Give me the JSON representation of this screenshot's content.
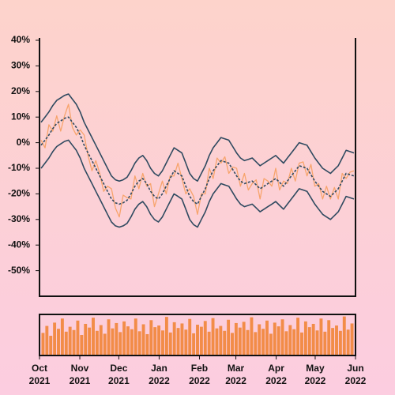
{
  "chart_data": [
    {
      "type": "line",
      "xlim": [
        "2021-10",
        "2022-06"
      ],
      "xticks": [
        {
          "value": "2021-10",
          "label": "Oct\n2021"
        },
        {
          "value": "2021-11",
          "label": "Nov\n2021"
        },
        {
          "value": "2021-12",
          "label": "Dec\n2021"
        },
        {
          "value": "2022-01",
          "label": "Jan\n2022"
        },
        {
          "value": "2022-02",
          "label": "Feb\n2022"
        },
        {
          "value": "2022-03",
          "label": "Mar\n2022"
        },
        {
          "value": "2022-04",
          "label": "Apr\n2022"
        },
        {
          "value": "2022-05",
          "label": "May\n2022"
        },
        {
          "value": "2022-06",
          "label": "Jun\n2022"
        }
      ],
      "ylim": [
        -60,
        40
      ],
      "yticks": [
        {
          "value": 40,
          "label": "40%"
        },
        {
          "value": 30,
          "label": "30%"
        },
        {
          "value": 20,
          "label": "20%"
        },
        {
          "value": 10,
          "label": "10%"
        },
        {
          "value": 0,
          "label": "0%"
        },
        {
          "value": -10,
          "label": "-10%"
        },
        {
          "value": -20,
          "label": "-20%"
        },
        {
          "value": -30,
          "label": "-30%"
        },
        {
          "value": -40,
          "label": "-40%"
        },
        {
          "value": -50,
          "label": "-50%"
        }
      ],
      "series": [
        {
          "color": "#f7a46c",
          "values": [
            1,
            -2,
            7,
            4.5,
            10.5,
            4.5,
            10.5,
            15,
            6,
            3,
            5,
            3,
            -5,
            -11,
            -7,
            -12,
            -19,
            -17,
            -18,
            -25.5,
            -29,
            -20.5,
            -21.5,
            -22,
            -13,
            -18,
            -12,
            -17,
            -16,
            -25,
            -20,
            -15,
            -20,
            -13,
            -13,
            -8,
            -14,
            -20,
            -18,
            -21,
            -28,
            -20,
            -20,
            -10,
            -14,
            -6,
            -8,
            -5.5,
            -12,
            -9.5,
            -10,
            -17,
            -12,
            -18.5,
            -16,
            -14.5,
            -22,
            -14,
            -15,
            -17,
            -10,
            -18.5,
            -15,
            -16,
            -10,
            -15,
            -8,
            -7.5,
            -13,
            -8.5,
            -17,
            -16,
            -22,
            -17,
            -22,
            -17.5,
            -22,
            -12,
            -14,
            -11.5,
            -11
          ]
        },
        {
          "color": "#2f4a60",
          "dashed": true,
          "values": [
            -1,
            1,
            3,
            5.5,
            7.5,
            8.5,
            9.5,
            10,
            8,
            6,
            3,
            -1,
            -4,
            -7,
            -10,
            -13,
            -16,
            -19,
            -22,
            -23.5,
            -24,
            -23.5,
            -22.5,
            -20,
            -17,
            -15,
            -14,
            -16,
            -19,
            -21,
            -22,
            -20,
            -17,
            -14,
            -11,
            -12,
            -13,
            -17,
            -21,
            -23,
            -24,
            -21,
            -18,
            -14,
            -11,
            -9,
            -7,
            -7.5,
            -8,
            -10.5,
            -13,
            -15,
            -16,
            -15.5,
            -15,
            -16.5,
            -18,
            -17,
            -16,
            -15,
            -14,
            -15.5,
            -17,
            -15,
            -13,
            -11,
            -9,
            -9.5,
            -10,
            -12.5,
            -15,
            -17,
            -19,
            -20,
            -21,
            -19.5,
            -18,
            -15,
            -12,
            -12.5,
            -13
          ]
        },
        {
          "color": "#2f4a60",
          "values": [
            8,
            10,
            12,
            14.5,
            16.5,
            17.5,
            18.5,
            19,
            17,
            15,
            12,
            8,
            5,
            2,
            -1,
            -4,
            -7,
            -10,
            -13,
            -14.5,
            -15,
            -14.5,
            -13.5,
            -11,
            -8,
            -6,
            -5,
            -7,
            -10,
            -12,
            -13,
            -11,
            -8,
            -5,
            -2,
            -3,
            -4,
            -8,
            -12,
            -14,
            -15,
            -12,
            -9,
            -5,
            -2,
            0,
            2,
            1.5,
            1,
            -1.5,
            -4,
            -6,
            -7,
            -6.5,
            -6,
            -7.5,
            -9,
            -8,
            -7,
            -6,
            -5,
            -6.5,
            -8,
            -6,
            -4,
            -2,
            0,
            -0.5,
            -1,
            -3.5,
            -6,
            -8,
            -10,
            -11,
            -12,
            -10.5,
            -9,
            -6,
            -3,
            -3.5,
            -4
          ]
        },
        {
          "color": "#2f4a60",
          "values": [
            -10,
            -8,
            -6,
            -3.5,
            -1.5,
            -0.5,
            0.5,
            1,
            -1,
            -3,
            -6,
            -10,
            -13,
            -16,
            -19,
            -22,
            -25,
            -28,
            -31,
            -32.5,
            -33,
            -32.5,
            -31.5,
            -29,
            -26,
            -24,
            -23,
            -25,
            -28,
            -30,
            -31,
            -29,
            -26,
            -23,
            -20,
            -21,
            -22,
            -26,
            -30,
            -32,
            -33,
            -30,
            -27,
            -23,
            -20,
            -18,
            -16,
            -16.5,
            -17,
            -19.5,
            -22,
            -24,
            -25,
            -24.5,
            -24,
            -25.5,
            -27,
            -26,
            -25,
            -24,
            -23,
            -24.5,
            -26,
            -24,
            -22,
            -20,
            -18,
            -18.5,
            -19,
            -21.5,
            -24,
            -26,
            -28,
            -29,
            -30,
            -28.5,
            -27,
            -24,
            -21,
            -21.5,
            -22
          ]
        }
      ]
    },
    {
      "type": "bar",
      "ylim": [
        0,
        100
      ],
      "color": "#f28c48",
      "values": [
        55,
        72,
        48,
        80,
        65,
        90,
        58,
        70,
        62,
        85,
        50,
        77,
        68,
        92,
        60,
        74,
        53,
        88,
        66,
        79,
        57,
        83,
        71,
        64,
        90,
        59,
        76,
        52,
        86,
        69,
        73,
        61,
        94,
        56,
        81,
        67,
        78,
        63,
        89,
        54,
        75,
        70,
        84,
        58,
        91,
        66,
        72,
        60,
        87,
        55,
        79,
        68,
        82,
        62,
        93,
        57,
        76,
        65,
        85,
        53,
        80,
        71,
        88,
        59,
        74,
        64,
        92,
        56,
        83,
        69,
        77,
        61,
        90,
        58,
        86,
        67,
        73,
        60,
        95,
        63,
        78
      ]
    }
  ]
}
